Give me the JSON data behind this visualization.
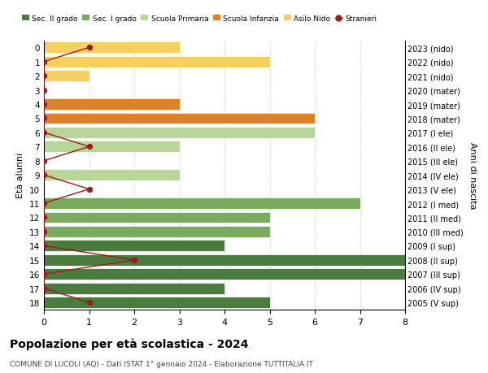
{
  "ages": [
    18,
    17,
    16,
    15,
    14,
    13,
    12,
    11,
    10,
    9,
    8,
    7,
    6,
    5,
    4,
    3,
    2,
    1,
    0
  ],
  "years": [
    "2005 (V sup)",
    "2006 (IV sup)",
    "2007 (III sup)",
    "2008 (II sup)",
    "2009 (I sup)",
    "2010 (III med)",
    "2011 (II med)",
    "2012 (I med)",
    "2013 (V ele)",
    "2014 (IV ele)",
    "2015 (III ele)",
    "2016 (II ele)",
    "2017 (I ele)",
    "2018 (mater)",
    "2019 (mater)",
    "2020 (mater)",
    "2021 (nido)",
    "2022 (nido)",
    "2023 (nido)"
  ],
  "bar_values": [
    5,
    4,
    8,
    8,
    4,
    5,
    5,
    7,
    0,
    3,
    0,
    3,
    6,
    6,
    3,
    0,
    1,
    5,
    3
  ],
  "bar_colors": [
    "#4a7c3f",
    "#4a7c3f",
    "#4a7c3f",
    "#4a7c3f",
    "#4a7c3f",
    "#7aaa5e",
    "#7aaa5e",
    "#7aaa5e",
    "#b8d69a",
    "#b8d69a",
    "#b8d69a",
    "#b8d69a",
    "#b8d69a",
    "#d9822b",
    "#d9822b",
    "#d9822b",
    "#f5d060",
    "#f5d060",
    "#f5d060"
  ],
  "stranieri_values": [
    1,
    0,
    0,
    2,
    0,
    0,
    0,
    0,
    1,
    0,
    0,
    1,
    0,
    0,
    0,
    0,
    0,
    0,
    1
  ],
  "stranieri_color": "#9e1b1b",
  "legend_labels": [
    "Sec. II grado",
    "Sec. I grado",
    "Scuola Primaria",
    "Scuola Infanzia",
    "Asilo Nido",
    "Stranieri"
  ],
  "legend_colors": [
    "#4a7c3f",
    "#7aaa5e",
    "#b8d69a",
    "#d9822b",
    "#f5d060",
    "#cc1111"
  ],
  "title": "Popolazione per età scolastica - 2024",
  "subtitle": "COMUNE DI LUCOLI (AQ) - Dati ISTAT 1° gennaio 2024 - Elaborazione TUTTITALIA.IT",
  "ylabel_left": "Età alunni",
  "ylabel_right": "Anni di nascita",
  "xlim": [
    0,
    8
  ],
  "background_color": "#ffffff",
  "grid_color": "#cccccc",
  "bar_edge_color": "#ffffff"
}
